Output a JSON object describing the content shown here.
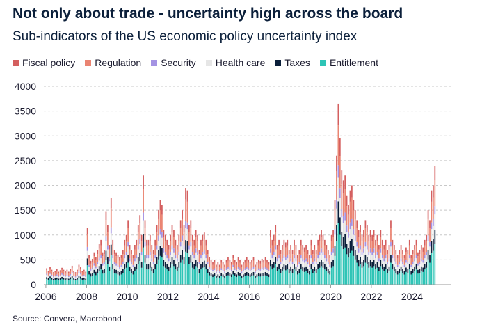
{
  "title": "Not only about trade - uncertainty high across the board",
  "subtitle": "Sub-indicators of the US economic policy uncertainty index",
  "source": "Source: Convera, Macrobond",
  "colors": {
    "fiscal": "#d45f5f",
    "regulation": "#ea8472",
    "security": "#a493e3",
    "health": "#e6e6e6",
    "taxes": "#0b1f3a",
    "entitlement": "#2ec4b6",
    "grid": "#c8c8c8",
    "axis": "#999999"
  },
  "chart_data": {
    "type": "bar",
    "stacked": true,
    "title": "Not only about trade - uncertainty high across the board",
    "subtitle": "Sub-indicators of the US economic policy uncertainty index",
    "xlabel": "",
    "ylabel": "",
    "ylim": [
      0,
      4000
    ],
    "yticks": [
      0,
      500,
      1000,
      1500,
      2000,
      2500,
      3000,
      3500,
      4000
    ],
    "xlim": [
      2005.9,
      2025.9
    ],
    "xticks": [
      "2006",
      "2008",
      "2010",
      "2012",
      "2014",
      "2016",
      "2018",
      "2020",
      "2022",
      "2024"
    ],
    "frequency": "monthly, Jan 2006 - Feb 2025",
    "legend_position": "top",
    "series": [
      {
        "name": "Fiscal policy",
        "color_key": "fiscal"
      },
      {
        "name": "Regulation",
        "color_key": "regulation"
      },
      {
        "name": "Security",
        "color_key": "security"
      },
      {
        "name": "Health care",
        "color_key": "health"
      },
      {
        "name": "Taxes",
        "color_key": "taxes"
      },
      {
        "name": "Entitlement",
        "color_key": "entitlement"
      }
    ],
    "share_fractions": {
      "entitlement": 0.34,
      "taxes": 0.12,
      "health": 0.13,
      "security": 0.07,
      "regulation": 0.22,
      "fiscal": 0.12
    },
    "totals_by_year": {
      "2006": [
        330,
        280,
        360,
        300,
        250,
        280,
        310,
        260,
        290,
        340,
        300,
        270
      ],
      "2007": [
        300,
        260,
        320,
        380,
        280,
        250,
        300,
        400,
        350,
        280,
        300,
        260
      ],
      "2008": [
        1150,
        600,
        480,
        520,
        650,
        560,
        700,
        820,
        900,
        650,
        700,
        1480
      ],
      "2009": [
        1200,
        800,
        1750,
        900,
        700,
        650,
        600,
        550,
        600,
        700,
        900,
        1000
      ],
      "2010": [
        1300,
        800,
        700,
        600,
        800,
        900,
        1200,
        1400,
        1000,
        2200,
        1300,
        900
      ],
      "2011": [
        900,
        1000,
        800,
        700,
        900,
        1200,
        1500,
        1700,
        1600,
        1100,
        1000,
        900
      ],
      "2012": [
        800,
        1000,
        1200,
        1100,
        900,
        800,
        1000,
        1300,
        1500,
        1200,
        1950,
        1900
      ],
      "2013": [
        1200,
        1300,
        1000,
        900,
        1100,
        1000,
        700,
        900,
        1000,
        1050,
        900,
        700
      ],
      "2014": [
        550,
        500,
        450,
        500,
        400,
        450,
        400,
        500,
        450,
        400,
        500,
        550
      ],
      "2015": [
        500,
        450,
        600,
        500,
        450,
        550,
        500,
        400,
        450,
        500,
        550,
        500
      ],
      "2016": [
        450,
        500,
        550,
        400,
        450,
        500,
        480,
        520,
        500,
        550,
        500,
        450
      ],
      "2017": [
        1100,
        900,
        1000,
        1200,
        800,
        900,
        700,
        800,
        900,
        850,
        900,
        700
      ],
      "2018": [
        800,
        700,
        900,
        800,
        600,
        700,
        900,
        800,
        750,
        800,
        700,
        600
      ],
      "2019": [
        900,
        700,
        800,
        700,
        900,
        1000,
        1100,
        1000,
        900,
        800,
        700,
        600
      ],
      "2020": [
        1000,
        1100,
        1700,
        2600,
        3650,
        2950,
        2300,
        2100,
        2200,
        1800,
        1600,
        1900
      ],
      "2021": [
        2000,
        1700,
        1500,
        1300,
        1100,
        1200,
        1000,
        1100,
        1300,
        1200,
        1000,
        1100
      ],
      "2022": [
        1000,
        1100,
        900,
        1000,
        800,
        1100,
        900,
        800,
        900,
        700,
        800,
        1300
      ],
      "2023": [
        900,
        800,
        700,
        600,
        700,
        800,
        700,
        600,
        750,
        700,
        900,
        600
      ],
      "2024": [
        700,
        800,
        900,
        650,
        700,
        800,
        750,
        900,
        1000,
        1500,
        1300,
        1900
      ],
      "2025": [
        2000,
        2400
      ]
    }
  }
}
